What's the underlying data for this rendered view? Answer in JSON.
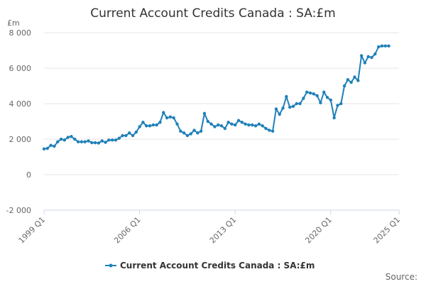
{
  "chart_data": {
    "type": "line",
    "title": "Current Account Credits Canada : SA:£m",
    "ylabel": "£m",
    "xlabel": "",
    "ylim": [
      -2000,
      8000
    ],
    "yticks": [
      -2000,
      0,
      2000,
      4000,
      6000,
      8000
    ],
    "ytick_labels": [
      "-2 000",
      "0",
      "2 000",
      "4 000",
      "6 000",
      "8 000"
    ],
    "xticks": [
      "1999 Q1",
      "2006 Q1",
      "2013 Q1",
      "2020 Q1",
      "2025 Q1"
    ],
    "grid": true,
    "legend_position": "bottom",
    "color": "#1f80b9",
    "credits_label": "Source:",
    "series": [
      {
        "name": "Current Account Credits Canada : SA:£m",
        "x": [
          "1999 Q1",
          "1999 Q2",
          "1999 Q3",
          "1999 Q4",
          "2000 Q1",
          "2000 Q2",
          "2000 Q3",
          "2000 Q4",
          "2001 Q1",
          "2001 Q2",
          "2001 Q3",
          "2001 Q4",
          "2002 Q1",
          "2002 Q2",
          "2002 Q3",
          "2002 Q4",
          "2003 Q1",
          "2003 Q2",
          "2003 Q3",
          "2003 Q4",
          "2004 Q1",
          "2004 Q2",
          "2004 Q3",
          "2004 Q4",
          "2005 Q1",
          "2005 Q2",
          "2005 Q3",
          "2005 Q4",
          "2006 Q1",
          "2006 Q2",
          "2006 Q3",
          "2006 Q4",
          "2007 Q1",
          "2007 Q2",
          "2007 Q3",
          "2007 Q4",
          "2008 Q1",
          "2008 Q2",
          "2008 Q3",
          "2008 Q4",
          "2009 Q1",
          "2009 Q2",
          "2009 Q3",
          "2009 Q4",
          "2010 Q1",
          "2010 Q2",
          "2010 Q3",
          "2010 Q4",
          "2011 Q1",
          "2011 Q2",
          "2011 Q3",
          "2011 Q4",
          "2012 Q1",
          "2012 Q2",
          "2012 Q3",
          "2012 Q4",
          "2013 Q1",
          "2013 Q2",
          "2013 Q3",
          "2013 Q4",
          "2014 Q1",
          "2014 Q2",
          "2014 Q3",
          "2014 Q4",
          "2015 Q1",
          "2015 Q2",
          "2015 Q3",
          "2015 Q4",
          "2016 Q1",
          "2016 Q2",
          "2016 Q3",
          "2016 Q4",
          "2017 Q1",
          "2017 Q2",
          "2017 Q3",
          "2017 Q4",
          "2018 Q1",
          "2018 Q2",
          "2018 Q3",
          "2018 Q4",
          "2019 Q1",
          "2019 Q2",
          "2019 Q3",
          "2019 Q4",
          "2020 Q1",
          "2020 Q2",
          "2020 Q3",
          "2020 Q4",
          "2021 Q1",
          "2021 Q2",
          "2021 Q3",
          "2021 Q4",
          "2022 Q1",
          "2022 Q2",
          "2022 Q3",
          "2022 Q4",
          "2023 Q1",
          "2023 Q2",
          "2023 Q3",
          "2023 Q4",
          "2024 Q1",
          "2024 Q2"
        ],
        "values": [
          1450,
          1480,
          1650,
          1600,
          1850,
          2000,
          1950,
          2100,
          2150,
          2000,
          1850,
          1850,
          1850,
          1900,
          1800,
          1800,
          1780,
          1900,
          1820,
          1950,
          1950,
          1950,
          2050,
          2200,
          2200,
          2350,
          2200,
          2400,
          2700,
          2950,
          2750,
          2750,
          2800,
          2800,
          2950,
          3500,
          3200,
          3250,
          3200,
          2850,
          2450,
          2350,
          2200,
          2300,
          2500,
          2350,
          2450,
          3450,
          3000,
          2850,
          2700,
          2800,
          2750,
          2600,
          2950,
          2850,
          2800,
          3050,
          2950,
          2850,
          2800,
          2800,
          2750,
          2850,
          2750,
          2600,
          2500,
          2450,
          3700,
          3400,
          3750,
          4400,
          3800,
          3850,
          4000,
          4000,
          4300,
          4650,
          4600,
          4550,
          4450,
          4050,
          4650,
          4350,
          4200,
          3200,
          3900,
          4000,
          5000,
          5350,
          5200,
          5500,
          5300,
          6700,
          6300,
          6650,
          6600,
          6800,
          7200,
          7250,
          7250,
          7250
        ]
      }
    ]
  }
}
